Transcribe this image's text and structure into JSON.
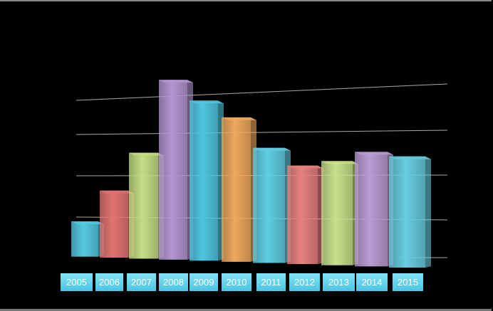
{
  "chart_data": {
    "type": "bar",
    "style": "3d-perspective",
    "title": "",
    "xlabel": "",
    "ylabel": "",
    "categories": [
      "2005",
      "2006",
      "2007",
      "2008",
      "2009",
      "2010",
      "2011",
      "2012",
      "2013",
      "2014",
      "2015"
    ],
    "values": [
      0.85,
      1.6,
      2.5,
      4.2,
      3.7,
      3.3,
      2.6,
      2.2,
      2.3,
      2.5,
      2.4
    ],
    "ylim": [
      0,
      4.4
    ],
    "y_tick_labels_shown": false,
    "grid": true,
    "background": "#000000",
    "bar_colors": [
      "#5ad6ef",
      "#f07c78",
      "#d2ec8e",
      "#bf9fe0",
      "#55d3ef",
      "#ffb364",
      "#66dcf2",
      "#f58a88",
      "#d6ef94",
      "#c6a6e0",
      "#6fd9ef"
    ],
    "label_box_color": "#4cc4e4",
    "label_text_color": "#ffffff"
  }
}
